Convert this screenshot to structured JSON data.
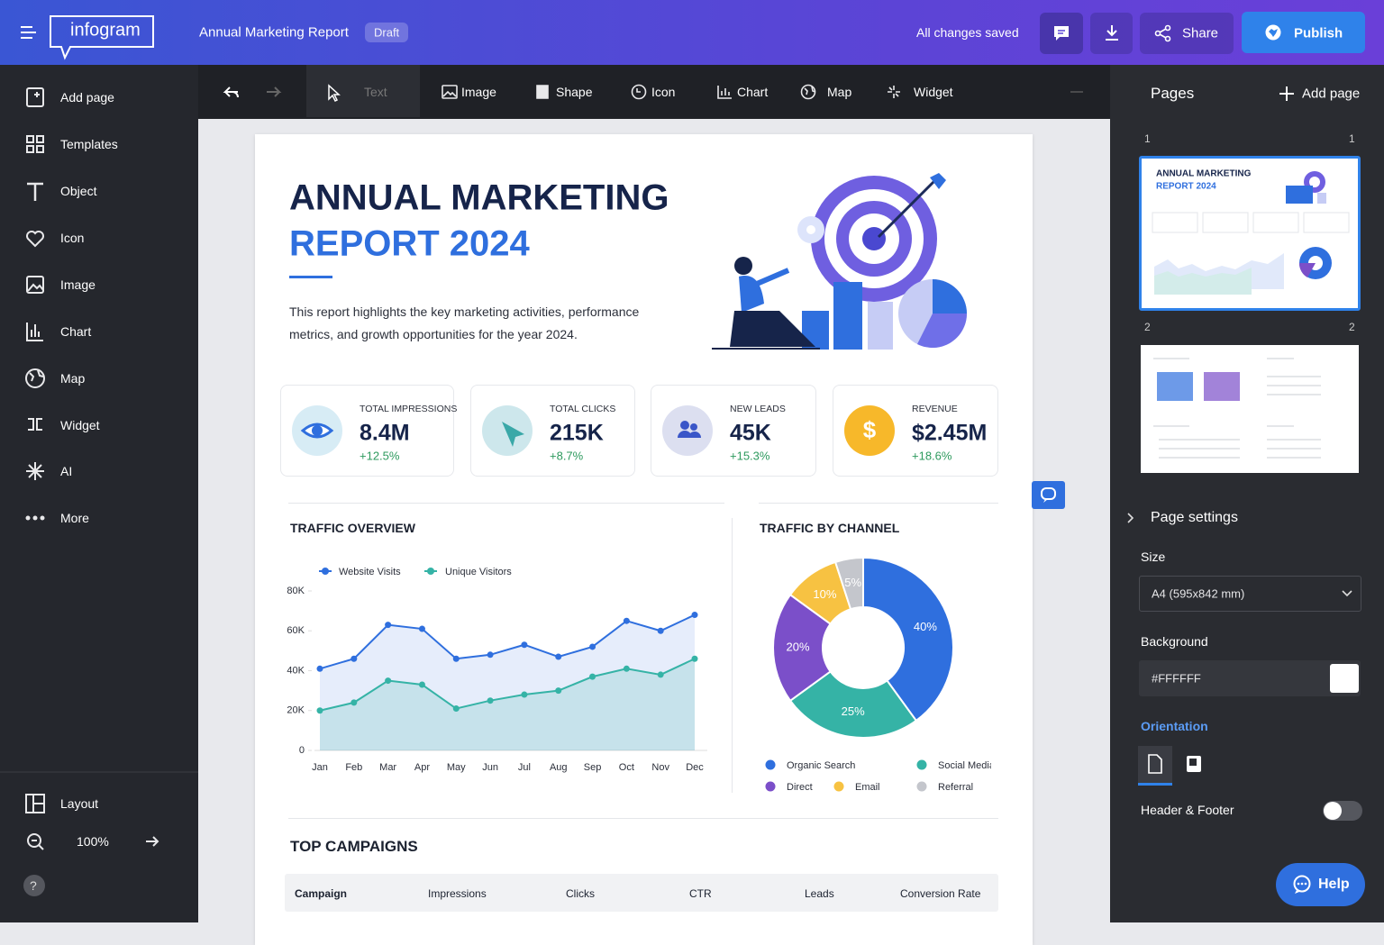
{
  "topbar": {
    "logo": "infogram",
    "title": "Annual Marketing Report",
    "status": "Draft",
    "save_state": "All changes saved",
    "share": "Share",
    "publish": "Publish"
  },
  "toolbar": {
    "items": [
      "Text",
      "Image",
      "Shape",
      "Icon",
      "Chart",
      "Map",
      "Widget"
    ]
  },
  "sidebar": {
    "items": [
      "Add page",
      "Templates",
      "Object",
      "Icon",
      "Image",
      "Chart",
      "Map",
      "Widget",
      "AI",
      "More"
    ],
    "layout": "Layout",
    "zoom": "100%",
    "help": "?"
  },
  "report": {
    "title_line1": "ANNUAL MARKETING",
    "title_line2": "REPORT 2024",
    "intro": "This report highlights the key marketing activities, performance metrics, and growth opportunities for the year 2024.",
    "kpis": [
      {
        "label": "TOTAL IMPRESSIONS",
        "value": "8.4M",
        "change": "+12.5%"
      },
      {
        "label": "TOTAL CLICKS",
        "value": "215K",
        "change": "+8.7%"
      },
      {
        "label": "NEW LEADS",
        "value": "45K",
        "change": "+15.3%"
      },
      {
        "label": "REVENUE",
        "value": "$2.45M",
        "change": "+18.6%"
      }
    ],
    "campaigns": {
      "title": "TOP CAMPAIGNS",
      "columns": [
        "Campaign",
        "Impressions",
        "Clicks",
        "CTR",
        "Leads",
        "Conversion Rate"
      ]
    }
  },
  "chart_data": [
    {
      "type": "line",
      "title": "TRAFFIC OVERVIEW",
      "area": true,
      "categories": [
        "Jan",
        "Feb",
        "Mar",
        "Apr",
        "May",
        "Jun",
        "Jul",
        "Aug",
        "Sep",
        "Oct",
        "Nov",
        "Dec"
      ],
      "series": [
        {
          "name": "Website Visits",
          "color": "#2f6fde",
          "values": [
            41,
            46,
            63,
            61,
            46,
            48,
            53,
            47,
            52,
            65,
            60,
            68
          ]
        },
        {
          "name": "Unique Visitors",
          "color": "#35b3a6",
          "values": [
            20,
            24,
            35,
            33,
            21,
            25,
            28,
            30,
            37,
            41,
            38,
            46
          ]
        }
      ],
      "ylim": [
        0,
        80
      ],
      "yticks": [
        0,
        {
          "value": 20,
          "label": "20K"
        },
        {
          "value": 40,
          "label": "40K"
        },
        {
          "value": 60,
          "label": "60K"
        },
        {
          "value": 80,
          "label": "80K"
        }
      ]
    },
    {
      "type": "pie",
      "donut": true,
      "title": "TRAFFIC BY CHANNEL",
      "categories": [
        "Organic Search",
        "Social Media",
        "Direct",
        "Email",
        "Referral"
      ],
      "values": [
        40,
        25,
        20,
        10,
        5
      ],
      "value_labels": [
        "40%",
        "25%",
        "20%",
        "10%",
        "5%"
      ],
      "colors": [
        "#2f6fde",
        "#35b3a6",
        "#7b4fc9",
        "#f7c242",
        "#c4c6cc"
      ]
    }
  ],
  "pages_panel": {
    "title": "Pages",
    "add": "Add page",
    "pages": [
      {
        "left": "1",
        "right": "1"
      },
      {
        "left": "2",
        "right": "2"
      }
    ]
  },
  "page_settings": {
    "title": "Page settings",
    "size_label": "Size",
    "size_value": "A4 (595x842 mm)",
    "background_label": "Background",
    "background_value": "#FFFFFF",
    "orientation_label": "Orientation",
    "header_footer": "Header & Footer"
  },
  "help": "Help"
}
